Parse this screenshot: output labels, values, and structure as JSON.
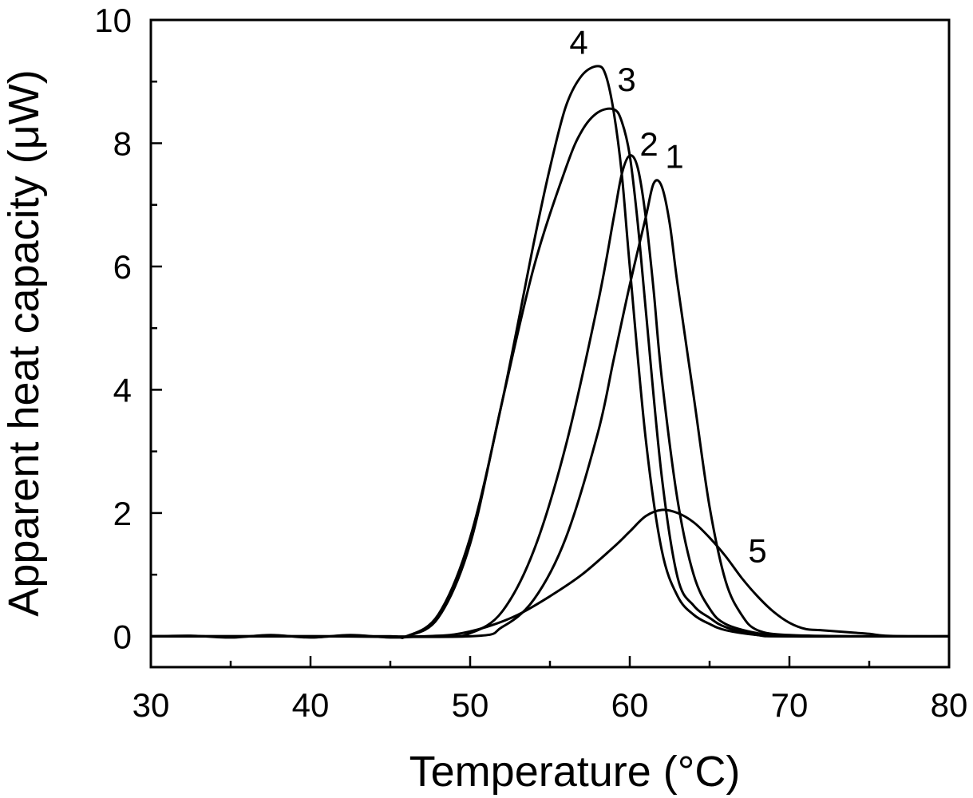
{
  "chart_data": {
    "type": "line",
    "xlabel": "Temperature (°C)",
    "ylabel": "Apparent heat capacity (μW)",
    "xlim": [
      30,
      80
    ],
    "ylim": [
      -0.5,
      10
    ],
    "xticks": [
      30,
      40,
      50,
      60,
      70,
      80
    ],
    "yticks": [
      0,
      2,
      4,
      6,
      8,
      10
    ],
    "xtick_labels": [
      "30",
      "40",
      "50",
      "60",
      "70",
      "80"
    ],
    "ytick_labels": [
      "0",
      "2",
      "4",
      "6",
      "8",
      "10"
    ],
    "grid": false,
    "legend": "none",
    "series": [
      {
        "name": "1",
        "label_at": [
          62.8,
          7.6
        ],
        "x": [
          30,
          40,
          50,
          52,
          54,
          56,
          58,
          59,
          60,
          61,
          61.5,
          62,
          62.5,
          63,
          64,
          65,
          66,
          67,
          68,
          70,
          75,
          80
        ],
        "y": [
          0,
          0,
          0,
          0.15,
          0.6,
          1.6,
          3.3,
          4.5,
          5.7,
          6.8,
          7.35,
          7.3,
          6.7,
          5.7,
          3.9,
          2.1,
          0.9,
          0.35,
          0.1,
          0.02,
          0,
          0
        ]
      },
      {
        "name": "2",
        "label_at": [
          61.2,
          7.8
        ],
        "x": [
          30,
          40,
          48,
          50,
          52,
          54,
          56,
          58,
          59,
          59.5,
          60,
          60.5,
          61,
          61.5,
          62,
          63,
          64,
          65,
          66,
          68,
          70,
          75,
          80
        ],
        "y": [
          0,
          0,
          0,
          0.05,
          0.4,
          1.4,
          3.1,
          5.4,
          6.8,
          7.5,
          7.8,
          7.6,
          6.8,
          5.6,
          4.2,
          2.2,
          1.0,
          0.45,
          0.2,
          0.05,
          0,
          0,
          0
        ]
      },
      {
        "name": "3",
        "label_at": [
          59.8,
          8.85
        ],
        "x": [
          30,
          40,
          45,
          46,
          48,
          50,
          52,
          54,
          56,
          57,
          58,
          59,
          59.5,
          60,
          60.5,
          61,
          62,
          63,
          64,
          65,
          66,
          68,
          70,
          80
        ],
        "y": [
          0,
          0,
          0,
          0,
          0.3,
          1.5,
          3.8,
          6.0,
          7.6,
          8.2,
          8.5,
          8.55,
          8.35,
          7.8,
          6.7,
          5.3,
          2.6,
          0.95,
          0.5,
          0.3,
          0.15,
          0.02,
          0,
          0
        ]
      },
      {
        "name": "4",
        "label_at": [
          56.8,
          9.45
        ],
        "x": [
          30,
          40,
          45,
          46,
          48,
          50,
          52,
          54,
          55,
          56,
          57,
          58,
          58.5,
          59,
          59.5,
          60,
          61,
          62,
          63,
          64,
          65,
          66,
          68,
          70,
          80
        ],
        "y": [
          0,
          0,
          0,
          0,
          0.35,
          1.6,
          3.8,
          6.4,
          7.6,
          8.6,
          9.1,
          9.25,
          9.1,
          8.5,
          7.5,
          6.0,
          3.2,
          1.4,
          0.65,
          0.35,
          0.2,
          0.1,
          0.02,
          0,
          0
        ]
      },
      {
        "name": "5",
        "label_at": [
          68.0,
          1.2
        ],
        "x": [
          30,
          32.5,
          35,
          37.5,
          40,
          42.5,
          45,
          47,
          49,
          51,
          53,
          55,
          57,
          59,
          60,
          61,
          62,
          63,
          64,
          65,
          66,
          67,
          68,
          69,
          70,
          71,
          72,
          73,
          74,
          75,
          76,
          78,
          80
        ],
        "y": [
          0,
          0.01,
          -0.02,
          0.02,
          -0.02,
          0.02,
          -0.02,
          0,
          0.03,
          0.15,
          0.35,
          0.65,
          1.0,
          1.45,
          1.7,
          1.95,
          2.05,
          2.0,
          1.85,
          1.6,
          1.3,
          0.95,
          0.65,
          0.4,
          0.22,
          0.12,
          0.1,
          0.08,
          0.06,
          0.04,
          0.01,
          0,
          0
        ]
      }
    ]
  }
}
